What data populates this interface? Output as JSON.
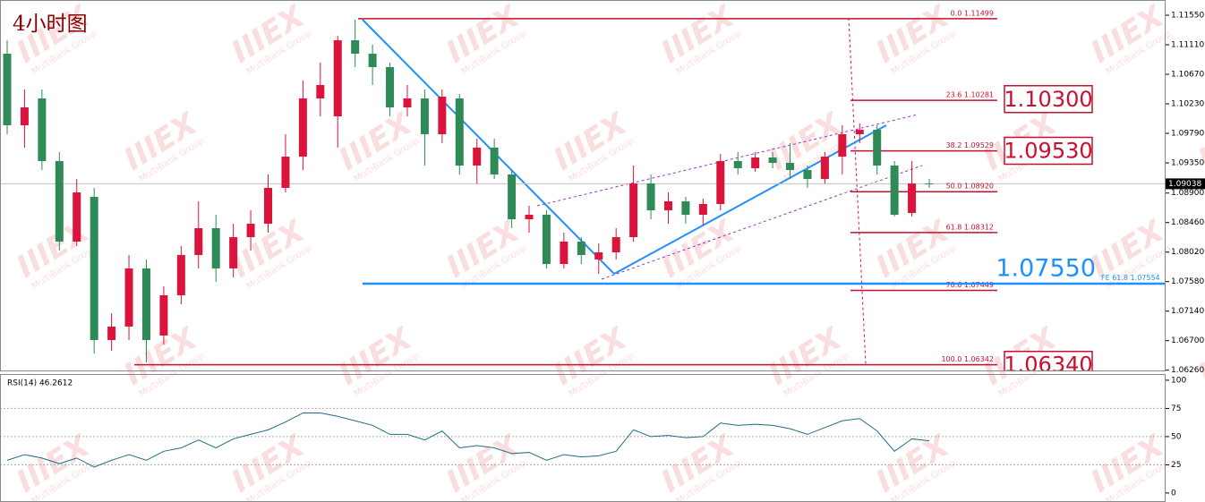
{
  "chart_data": [
    {
      "type": "candlestick",
      "title": "4小时图",
      "open": [
        1.10977,
        1.0991,
        1.1031,
        1.09377,
        1.08177,
        1.08843,
        1.0671,
        1.0691,
        1.07777,
        1.06777,
        1.07377,
        1.07977,
        1.08377,
        1.07777,
        1.08243,
        1.08443,
        1.08977,
        1.09443,
        1.1031,
        1.10043,
        1.11177,
        1.10977,
        1.10777,
        1.10177,
        1.1031,
        1.09777,
        1.1031,
        1.0931,
        1.09577,
        1.09177,
        1.0851,
        1.08577,
        1.07843,
        1.08177,
        1.0791,
        1.08017,
        1.08243,
        1.09043,
        1.08643,
        1.08777,
        1.08577,
        1.08737,
        1.09377,
        1.0927,
        1.0943,
        1.0935,
        1.09243,
        1.0911,
        1.09443,
        1.09777,
        1.09843,
        1.0931,
        1.08603,
        1.09043
      ],
      "high": [
        1.11177,
        1.10443,
        1.10443,
        1.0951,
        1.0911,
        1.08977,
        1.0711,
        1.07977,
        1.0791,
        1.0751,
        1.0811,
        1.08777,
        1.08577,
        1.08443,
        1.08643,
        1.09177,
        1.09777,
        1.10577,
        1.10843,
        1.11243,
        1.11483,
        1.1111,
        1.10843,
        1.1051,
        1.10443,
        1.10443,
        1.10377,
        1.0971,
        1.0971,
        1.09243,
        1.0871,
        1.08643,
        1.0831,
        1.08243,
        1.0815,
        1.08377,
        1.0931,
        1.09177,
        1.0891,
        1.08843,
        1.08817,
        1.09483,
        1.0951,
        1.0951,
        1.0951,
        1.09643,
        1.0931,
        1.0951,
        1.0991,
        1.09937,
        1.0991,
        1.09377,
        1.09377,
        1.0911
      ],
      "low": [
        1.09777,
        1.09577,
        1.09243,
        1.08043,
        1.0811,
        1.0651,
        1.0655,
        1.0671,
        1.06377,
        1.06643,
        1.07243,
        1.07777,
        1.07577,
        1.07643,
        1.08043,
        1.0831,
        1.0891,
        1.09243,
        1.10043,
        1.09577,
        1.10777,
        1.1051,
        1.10043,
        1.10043,
        1.0931,
        1.09643,
        1.09177,
        1.09043,
        1.0911,
        1.08377,
        1.0831,
        1.07777,
        1.07777,
        1.07843,
        1.07697,
        1.0791,
        1.08177,
        1.0851,
        1.08443,
        1.08443,
        1.08417,
        1.08643,
        1.09177,
        1.09217,
        1.0927,
        1.0911,
        1.08977,
        1.09043,
        1.09177,
        1.09643,
        1.09177,
        1.0855,
        1.0855,
        1.08977
      ],
      "close": [
        1.0991,
        1.10177,
        1.09377,
        1.08177,
        1.0891,
        1.0671,
        1.0691,
        1.07777,
        1.0671,
        1.07377,
        1.07977,
        1.08377,
        1.07777,
        1.08243,
        1.08443,
        1.08977,
        1.09443,
        1.1031,
        1.1051,
        1.11177,
        1.10977,
        1.10777,
        1.10177,
        1.1031,
        1.09777,
        1.10337,
        1.0931,
        1.09577,
        1.09177,
        1.0851,
        1.08577,
        1.07843,
        1.08177,
        1.07977,
        1.08017,
        1.08243,
        1.09043,
        1.08643,
        1.08777,
        1.08577,
        1.08737,
        1.09377,
        1.0927,
        1.0943,
        1.0935,
        1.09243,
        1.0911,
        1.09443,
        1.09777,
        1.09843,
        1.0931,
        1.08577,
        1.09043,
        1.09038
      ],
      "up_color": "#dc143c",
      "down_color": "#2e8b57",
      "ylim": [
        1.06243,
        1.11777
      ],
      "yticks": [
        {
          "value": 1.1155,
          "label": "1.11550"
        },
        {
          "value": 1.1111,
          "label": "1.11110"
        },
        {
          "value": 1.1067,
          "label": "1.10670"
        },
        {
          "value": 1.1023,
          "label": "1.10230"
        },
        {
          "value": 1.0979,
          "label": "1.09790"
        },
        {
          "value": 1.0935,
          "label": "1.09350"
        },
        {
          "value": 1.089,
          "label": "1.08900"
        },
        {
          "value": 1.0846,
          "label": "1.08460"
        },
        {
          "value": 1.0802,
          "label": "1.08020"
        },
        {
          "value": 1.0758,
          "label": "1.07580"
        },
        {
          "value": 1.0714,
          "label": "1.07140"
        },
        {
          "value": 1.067,
          "label": "1.06700"
        },
        {
          "value": 1.0626,
          "label": "1.06260"
        }
      ],
      "last_price": 1.09038,
      "fibonacci": [
        {
          "label": "0.0  1.11499",
          "value": 1.11499
        },
        {
          "label": "23.6  1.10281",
          "value": 1.10281
        },
        {
          "label": "38.2  1.09529",
          "value": 1.09529
        },
        {
          "label": "50.0  1.08920",
          "value": 1.0892
        },
        {
          "label": "61.8  1.08312",
          "value": 1.08312
        },
        {
          "label": "78.6  1.07449",
          "value": 1.07449
        },
        {
          "label": "100.0  1.06342",
          "value": 1.06342
        }
      ],
      "fib_color": "#c8102e",
      "price_boxes": [
        {
          "label": "1.10300",
          "value": 1.103
        },
        {
          "label": "1.09530",
          "value": 1.0953
        },
        {
          "label": "1.06340",
          "value": 1.0634
        }
      ],
      "target": {
        "label": "1.07550",
        "value": 1.0755
      },
      "fe_level": {
        "label": "FE 61.8  1.07554",
        "value": 1.07554
      },
      "target_color": "#1e90ff"
    },
    {
      "type": "line",
      "title": "RSI(14) 46.2612",
      "values": [
        29,
        34,
        31,
        26,
        31,
        23,
        29,
        34,
        29,
        37,
        40,
        47,
        40,
        48,
        52,
        56,
        63,
        71,
        71,
        68,
        64,
        60,
        52,
        52,
        47,
        55,
        40,
        42,
        40,
        35,
        36,
        29,
        34,
        32,
        33,
        37,
        56,
        50,
        51,
        49,
        50,
        62,
        60,
        61,
        60,
        57,
        52,
        58,
        64,
        66,
        55,
        37,
        48,
        46.2612
      ],
      "color": "#1b6f80",
      "ylim": [
        -8,
        105.5
      ],
      "yticks": [
        0,
        25,
        50,
        75,
        100
      ],
      "levels": [
        25,
        50,
        75
      ]
    }
  ],
  "watermark": {
    "logo": "IIIEX",
    "text": "MultiBank Group"
  }
}
